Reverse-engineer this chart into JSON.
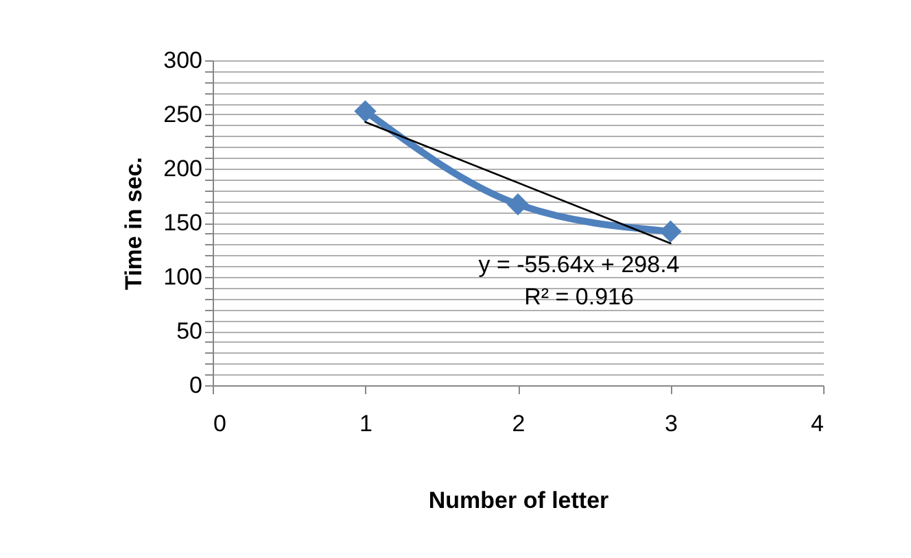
{
  "chart_data": {
    "type": "line",
    "xlabel": "Number of letter",
    "ylabel": "Time in sec.",
    "x": [
      1,
      2,
      3
    ],
    "series": [
      {
        "color": "#4f81bd",
        "values": [
          253,
          167,
          142
        ],
        "marker": "diamond"
      },
      {
        "type": "line",
        "color": "#000000",
        "x": [
          1,
          3
        ],
        "values": [
          243,
          131
        ],
        "marker": "none"
      }
    ],
    "annotations": [
      "y = -55.64x + 298.4",
      "R² = 0.916"
    ],
    "xlim": [
      0,
      4
    ],
    "xticks": [
      0,
      1,
      2,
      3,
      4
    ],
    "ylim": [
      0,
      300
    ],
    "yticks": [
      0,
      {
        "value": 10,
        "label": null
      },
      {
        "value": 20,
        "label": null
      },
      {
        "value": 30,
        "label": null
      },
      {
        "value": 40,
        "label": null
      },
      50,
      {
        "value": 60,
        "label": null
      },
      {
        "value": 70,
        "label": null
      },
      {
        "value": 80,
        "label": null
      },
      {
        "value": 90,
        "label": null
      },
      100,
      {
        "value": 110,
        "label": null
      },
      {
        "value": 120,
        "label": null
      },
      {
        "value": 130,
        "label": null
      },
      {
        "value": 140,
        "label": null
      },
      150,
      {
        "value": 160,
        "label": null
      },
      {
        "value": 170,
        "label": null
      },
      {
        "value": 180,
        "label": null
      },
      {
        "value": 190,
        "label": null
      },
      200,
      {
        "value": 210,
        "label": null
      },
      {
        "value": 220,
        "label": null
      },
      {
        "value": 230,
        "label": null
      },
      {
        "value": 240,
        "label": null
      },
      250,
      {
        "value": 260,
        "label": null
      },
      {
        "value": 270,
        "label": null
      },
      {
        "value": 280,
        "label": null
      },
      {
        "value": 290,
        "label": null
      },
      300
    ],
    "grid": "y"
  }
}
